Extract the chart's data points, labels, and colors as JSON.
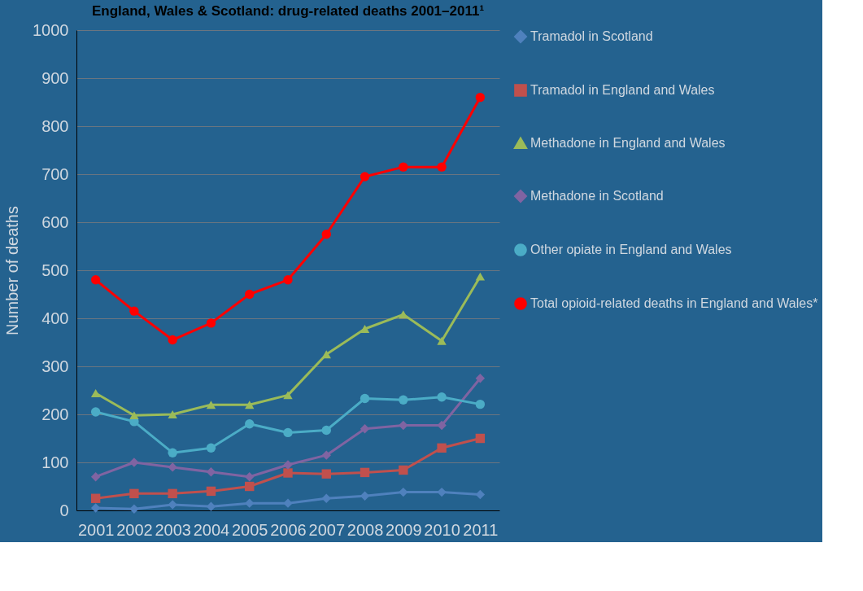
{
  "chart_data": {
    "type": "line",
    "title": "England, Wales & Scotland: drug-related deaths 2001–2011¹",
    "ylabel": "Number of deaths",
    "categories": [
      "2001",
      "2002",
      "2003",
      "2004",
      "2005",
      "2006",
      "2007",
      "2008",
      "2009",
      "2010",
      "2011"
    ],
    "ylim": [
      0,
      1000
    ],
    "yticks": [
      0,
      100,
      200,
      300,
      400,
      500,
      600,
      700,
      800,
      900,
      1000
    ],
    "grid": "y",
    "legend": "right",
    "line_style": "solid",
    "series": [
      {
        "name": "Tramadol in Scotland",
        "color": "#4f81bd",
        "marker": "diamond",
        "values": [
          5,
          3,
          12,
          8,
          15,
          15,
          25,
          30,
          38,
          38,
          33
        ]
      },
      {
        "name": "Tramadol in England and Wales",
        "color": "#c0504d",
        "marker": "square",
        "values": [
          25,
          35,
          35,
          40,
          50,
          78,
          76,
          79,
          84,
          130,
          150
        ]
      },
      {
        "name": "Methadone in England and Wales",
        "color": "#9bbb59",
        "marker": "triangle",
        "values": [
          244,
          198,
          200,
          220,
          220,
          240,
          325,
          378,
          408,
          353,
          487
        ]
      },
      {
        "name": "Methadone in Scotland",
        "color": "#8064a2",
        "marker": "diamond",
        "values": [
          70,
          100,
          90,
          80,
          70,
          95,
          115,
          170,
          177,
          177,
          275
        ]
      },
      {
        "name": "Other opiate in England and Wales",
        "color": "#4bacc6",
        "marker": "circle",
        "values": [
          205,
          185,
          120,
          130,
          180,
          162,
          167,
          233,
          230,
          236,
          221
        ]
      },
      {
        "name": "Total opioid-related deaths in England and Wales*",
        "color": "#ff0000",
        "marker": "circle",
        "values": [
          480,
          415,
          355,
          390,
          450,
          480,
          575,
          695,
          715,
          715,
          860
        ]
      }
    ]
  }
}
